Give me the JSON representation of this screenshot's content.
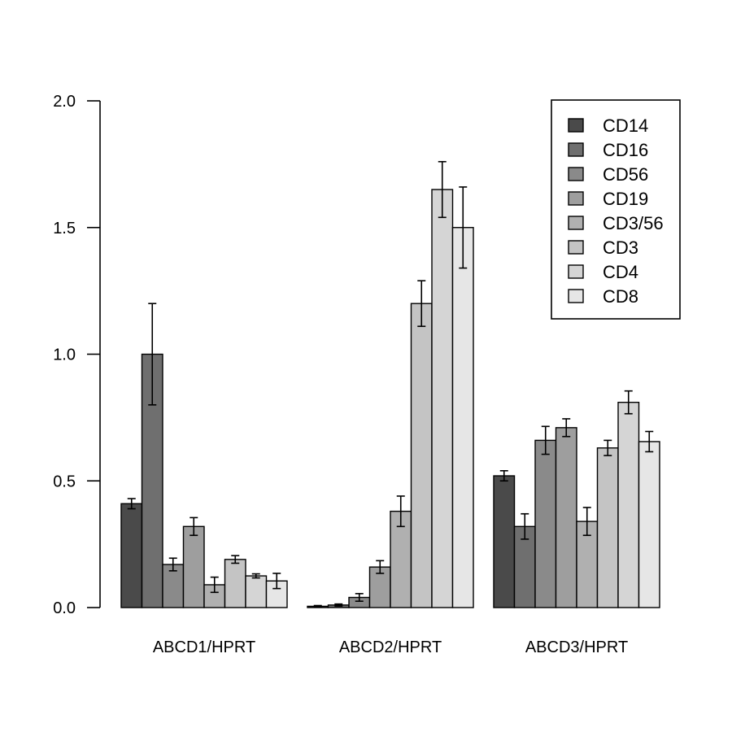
{
  "chart_data": {
    "type": "bar",
    "title": "",
    "xlabel": "",
    "ylabel": "",
    "ylim": [
      0,
      2.0
    ],
    "yticks": [
      "0.0",
      "0.5",
      "1.0",
      "1.5",
      "2.0"
    ],
    "grid": false,
    "legend_position": "top-right",
    "categories": [
      "ABCD1/HPRT",
      "ABCD2/HPRT",
      "ABCD3/HPRT"
    ],
    "series": [
      {
        "name": "CD14",
        "color": "#4a4a4a",
        "values": [
          0.41,
          0.005,
          0.52
        ],
        "errors": [
          0.02,
          0.003,
          0.02
        ]
      },
      {
        "name": "CD16",
        "color": "#6f6f6f",
        "values": [
          1.0,
          0.01,
          0.32
        ],
        "errors": [
          0.2,
          0.004,
          0.05
        ]
      },
      {
        "name": "CD56",
        "color": "#8a8a8a",
        "values": [
          0.17,
          0.04,
          0.66
        ],
        "errors": [
          0.025,
          0.015,
          0.055
        ]
      },
      {
        "name": "CD19",
        "color": "#9e9e9e",
        "values": [
          0.32,
          0.16,
          0.71
        ],
        "errors": [
          0.035,
          0.025,
          0.035
        ]
      },
      {
        "name": "CD3/56",
        "color": "#b0b0b0",
        "values": [
          0.09,
          0.38,
          0.34
        ],
        "errors": [
          0.03,
          0.06,
          0.055
        ]
      },
      {
        "name": "CD3",
        "color": "#c4c4c4",
        "values": [
          0.19,
          1.2,
          0.63
        ],
        "errors": [
          0.015,
          0.09,
          0.03
        ]
      },
      {
        "name": "CD4",
        "color": "#d5d5d5",
        "values": [
          0.125,
          1.65,
          0.81
        ],
        "errors": [
          0.008,
          0.11,
          0.045
        ]
      },
      {
        "name": "CD8",
        "color": "#e6e6e6",
        "values": [
          0.105,
          1.5,
          0.655
        ],
        "errors": [
          0.03,
          0.16,
          0.04
        ]
      }
    ]
  }
}
